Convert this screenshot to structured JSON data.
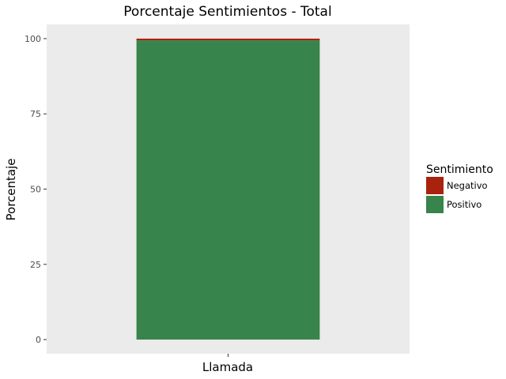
{
  "chart_data": {
    "type": "bar",
    "stacked": true,
    "title": "Porcentaje Sentimientos - Total",
    "xlabel": "Llamada",
    "ylabel": "Porcentaje",
    "categories": [
      ""
    ],
    "series": [
      {
        "name": "Positivo",
        "values": [
          99.4
        ],
        "color": "#37844c"
      },
      {
        "name": "Negativo",
        "values": [
          0.6
        ],
        "color": "#a8220e"
      }
    ],
    "ylim": [
      -4.7,
      104.7
    ],
    "yticks": [
      0,
      25,
      50,
      75,
      100
    ],
    "ytick_labels": [
      "0",
      "25",
      "50",
      "75",
      "100"
    ],
    "grid": false,
    "panel_background": "#ebebeb",
    "legend": {
      "title": "Sentimiento",
      "placement": "right",
      "entries": [
        "Negativo",
        "Positivo"
      ]
    }
  }
}
